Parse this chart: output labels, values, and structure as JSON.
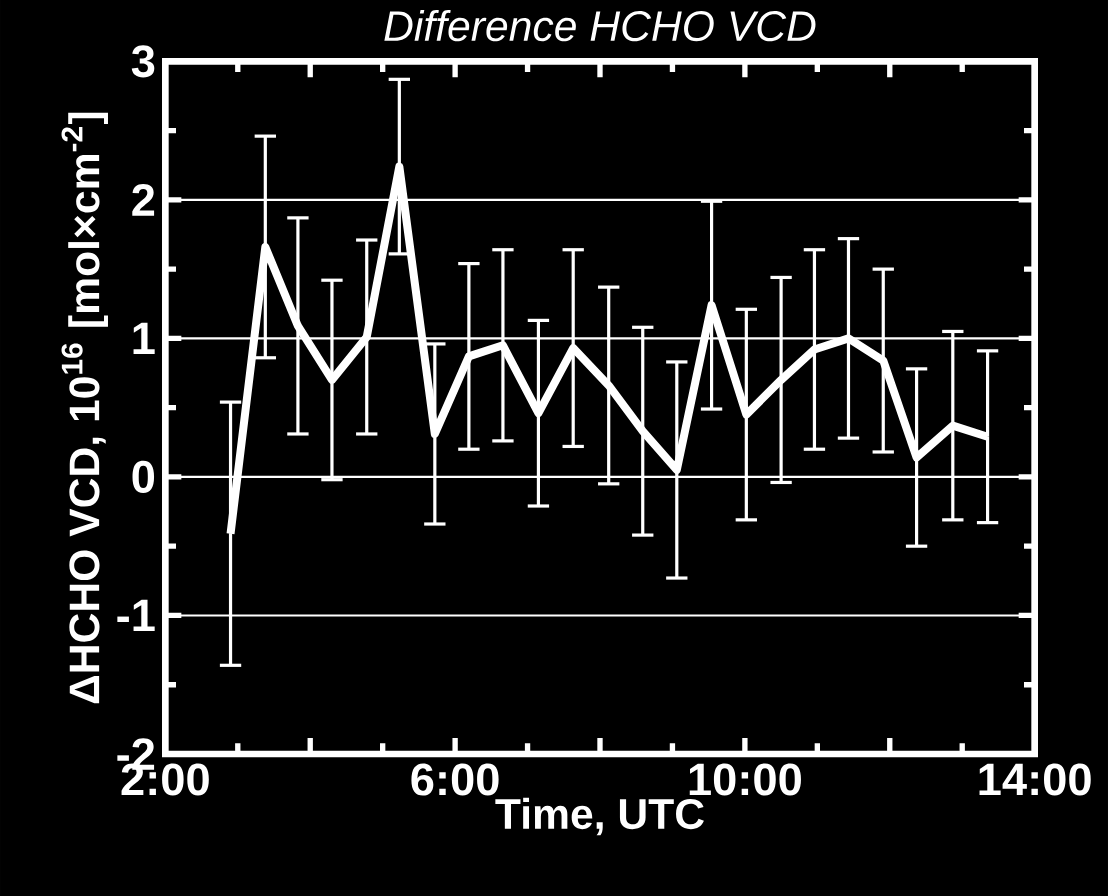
{
  "chart_data": {
    "type": "line",
    "title": "*Difference HCHO VCD*",
    "xlabel": "Time, UTC",
    "ylabel": "ΔHCHO VCD, 10$^{16}$ [mol×cm$^{-2}$]",
    "x": [
      2.9,
      3.38,
      3.83,
      4.3,
      4.78,
      5.23,
      5.72,
      6.19,
      6.66,
      7.15,
      7.63,
      8.12,
      8.59,
      9.06,
      9.54,
      10.02,
      10.5,
      10.96,
      11.43,
      11.91,
      12.37,
      12.87,
      13.35
    ],
    "values": [
      -0.41,
      1.66,
      1.09,
      0.7,
      1.01,
      2.24,
      0.31,
      0.87,
      0.95,
      0.46,
      0.93,
      0.66,
      0.33,
      0.05,
      1.24,
      0.45,
      0.7,
      0.92,
      1.0,
      0.84,
      0.14,
      0.37,
      0.29
    ],
    "errors": [
      0.95,
      0.8,
      0.78,
      0.72,
      0.7,
      0.63,
      0.65,
      0.67,
      0.69,
      0.67,
      0.71,
      0.71,
      0.75,
      0.78,
      0.75,
      0.76,
      0.74,
      0.72,
      0.72,
      0.66,
      0.64,
      0.68,
      0.62
    ],
    "color": "#ffffff",
    "marker": "none",
    "line_style": "solid",
    "grid": "y",
    "xlim": [
      2,
      14
    ],
    "ylim": [
      -2,
      3
    ],
    "xticks": [
      {
        "value": 2,
        "label": "2:00"
      },
      {
        "value": 4,
        "label": null
      },
      {
        "value": 6,
        "label": "6:00"
      },
      {
        "value": 8,
        "label": null
      },
      {
        "value": 10,
        "label": "10:00"
      },
      {
        "value": 12,
        "label": null
      },
      {
        "value": 14,
        "label": "14:00"
      }
    ],
    "yticks": [
      -2,
      -1,
      0,
      1,
      2,
      3
    ]
  }
}
